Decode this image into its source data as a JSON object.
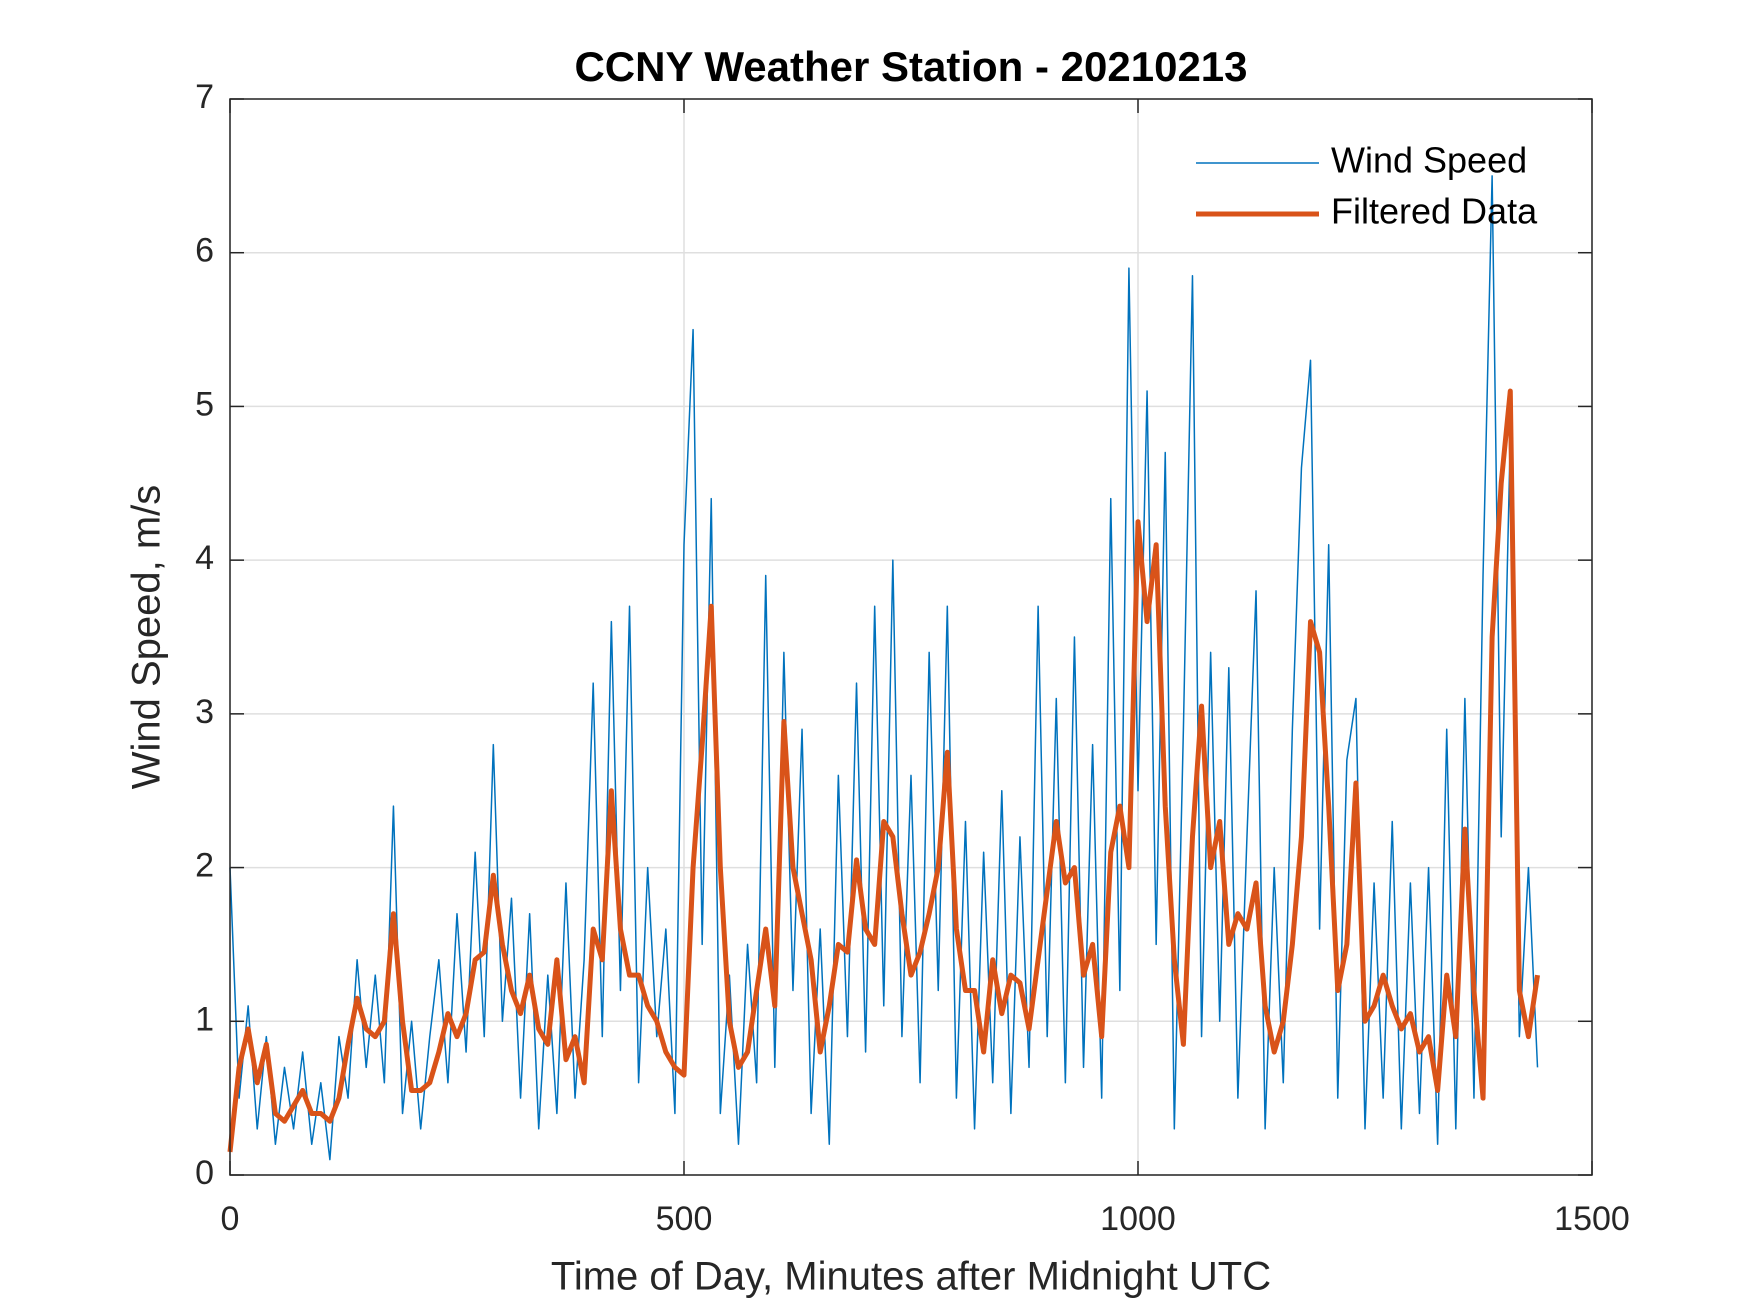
{
  "chart_data": {
    "type": "line",
    "title": "CCNY Weather Station - 20210213",
    "x_label": "Time of Day, Minutes after Midnight UTC",
    "y_label": "Wind Speed, m/s",
    "x": [
      0,
      10,
      20,
      30,
      40,
      50,
      60,
      70,
      80,
      90,
      100,
      110,
      120,
      130,
      140,
      150,
      160,
      170,
      180,
      190,
      200,
      210,
      220,
      230,
      240,
      250,
      260,
      270,
      280,
      290,
      300,
      310,
      320,
      330,
      340,
      350,
      360,
      370,
      380,
      390,
      400,
      410,
      420,
      430,
      440,
      450,
      460,
      470,
      480,
      490,
      500,
      510,
      520,
      530,
      540,
      550,
      560,
      570,
      580,
      590,
      600,
      610,
      620,
      630,
      640,
      650,
      660,
      670,
      680,
      690,
      700,
      710,
      720,
      730,
      740,
      750,
      760,
      770,
      780,
      790,
      800,
      810,
      820,
      830,
      840,
      850,
      860,
      870,
      880,
      890,
      900,
      910,
      920,
      930,
      940,
      950,
      960,
      970,
      980,
      990,
      1000,
      1010,
      1020,
      1030,
      1040,
      1050,
      1060,
      1070,
      1080,
      1090,
      1100,
      1110,
      1120,
      1130,
      1140,
      1150,
      1160,
      1170,
      1180,
      1190,
      1200,
      1210,
      1220,
      1230,
      1240,
      1250,
      1260,
      1270,
      1280,
      1290,
      1300,
      1310,
      1320,
      1330,
      1340,
      1350,
      1360,
      1370,
      1380,
      1390,
      1400,
      1410,
      1420,
      1430,
      1440
    ],
    "series": [
      {
        "name": "Wind Speed",
        "color": "#0072bd",
        "line_width": 1.5,
        "values": [
          2.0,
          0.5,
          1.1,
          0.3,
          0.9,
          0.2,
          0.7,
          0.3,
          0.8,
          0.2,
          0.6,
          0.1,
          0.9,
          0.5,
          1.4,
          0.7,
          1.3,
          0.6,
          2.4,
          0.4,
          1.0,
          0.3,
          0.9,
          1.4,
          0.6,
          1.7,
          0.8,
          2.1,
          0.9,
          2.8,
          1.0,
          1.8,
          0.5,
          1.7,
          0.3,
          1.3,
          0.4,
          1.9,
          0.5,
          1.4,
          3.2,
          0.9,
          3.6,
          1.2,
          3.7,
          0.6,
          2.0,
          0.9,
          1.6,
          0.4,
          4.1,
          5.5,
          1.5,
          4.4,
          0.4,
          1.3,
          0.2,
          1.5,
          0.6,
          3.9,
          0.7,
          3.4,
          1.2,
          2.9,
          0.4,
          1.6,
          0.2,
          2.6,
          0.9,
          3.2,
          0.8,
          3.7,
          1.1,
          4.0,
          0.9,
          2.6,
          0.6,
          3.4,
          1.2,
          3.7,
          0.5,
          2.3,
          0.3,
          2.1,
          0.6,
          2.5,
          0.4,
          2.2,
          0.7,
          3.7,
          0.9,
          3.1,
          0.6,
          3.5,
          0.7,
          2.8,
          0.5,
          4.4,
          1.2,
          5.9,
          2.5,
          5.1,
          1.5,
          4.7,
          0.3,
          2.9,
          5.85,
          0.9,
          3.4,
          1.0,
          3.3,
          0.5,
          2.2,
          3.8,
          0.3,
          2.0,
          0.6,
          2.9,
          4.6,
          5.3,
          1.6,
          4.1,
          0.5,
          2.7,
          3.1,
          0.3,
          1.9,
          0.5,
          2.3,
          0.3,
          1.9,
          0.4,
          2.0,
          0.2,
          2.9,
          0.3,
          3.1,
          0.5,
          3.9,
          6.5,
          2.2,
          4.8,
          0.9,
          2.0,
          0.7
        ]
      },
      {
        "name": "Filtered Data",
        "color": "#d95319",
        "line_width": 5,
        "values": [
          0.15,
          0.7,
          0.95,
          0.6,
          0.85,
          0.4,
          0.35,
          0.45,
          0.55,
          0.4,
          0.4,
          0.35,
          0.5,
          0.85,
          1.15,
          0.95,
          0.9,
          1.0,
          1.7,
          1.0,
          0.55,
          0.55,
          0.6,
          0.8,
          1.05,
          0.9,
          1.05,
          1.4,
          1.45,
          1.95,
          1.5,
          1.2,
          1.05,
          1.3,
          0.95,
          0.85,
          1.4,
          0.75,
          0.9,
          0.6,
          1.6,
          1.4,
          2.5,
          1.6,
          1.3,
          1.3,
          1.1,
          1.0,
          0.8,
          0.7,
          0.65,
          2.0,
          2.8,
          3.7,
          2.0,
          1.0,
          0.7,
          0.8,
          1.2,
          1.6,
          1.1,
          2.95,
          2.0,
          1.7,
          1.4,
          0.8,
          1.1,
          1.5,
          1.45,
          2.05,
          1.6,
          1.5,
          2.3,
          2.2,
          1.7,
          1.3,
          1.45,
          1.7,
          2.0,
          2.75,
          1.6,
          1.2,
          1.2,
          0.8,
          1.4,
          1.05,
          1.3,
          1.25,
          0.95,
          1.4,
          1.85,
          2.3,
          1.9,
          2.0,
          1.3,
          1.5,
          0.9,
          2.1,
          2.4,
          2.0,
          4.25,
          3.6,
          4.1,
          2.4,
          1.4,
          0.85,
          2.2,
          3.05,
          2.0,
          2.3,
          1.5,
          1.7,
          1.6,
          1.9,
          1.1,
          0.8,
          1.0,
          1.5,
          2.2,
          3.6,
          3.4,
          2.4,
          1.2,
          1.5,
          2.55,
          1.0,
          1.1,
          1.3,
          1.1,
          0.95,
          1.05,
          0.8,
          0.9,
          0.55,
          1.3,
          0.9,
          2.25,
          1.2,
          0.5,
          3.5,
          4.5,
          5.1,
          1.2,
          0.9,
          1.3
        ]
      }
    ],
    "xlim": [
      0,
      1500
    ],
    "xticks": [
      0,
      500,
      1000,
      1500
    ],
    "ylim": [
      0,
      7
    ],
    "yticks": [
      0,
      1,
      2,
      3,
      4,
      5,
      6,
      7
    ],
    "grid": true,
    "legend": "top-right"
  }
}
